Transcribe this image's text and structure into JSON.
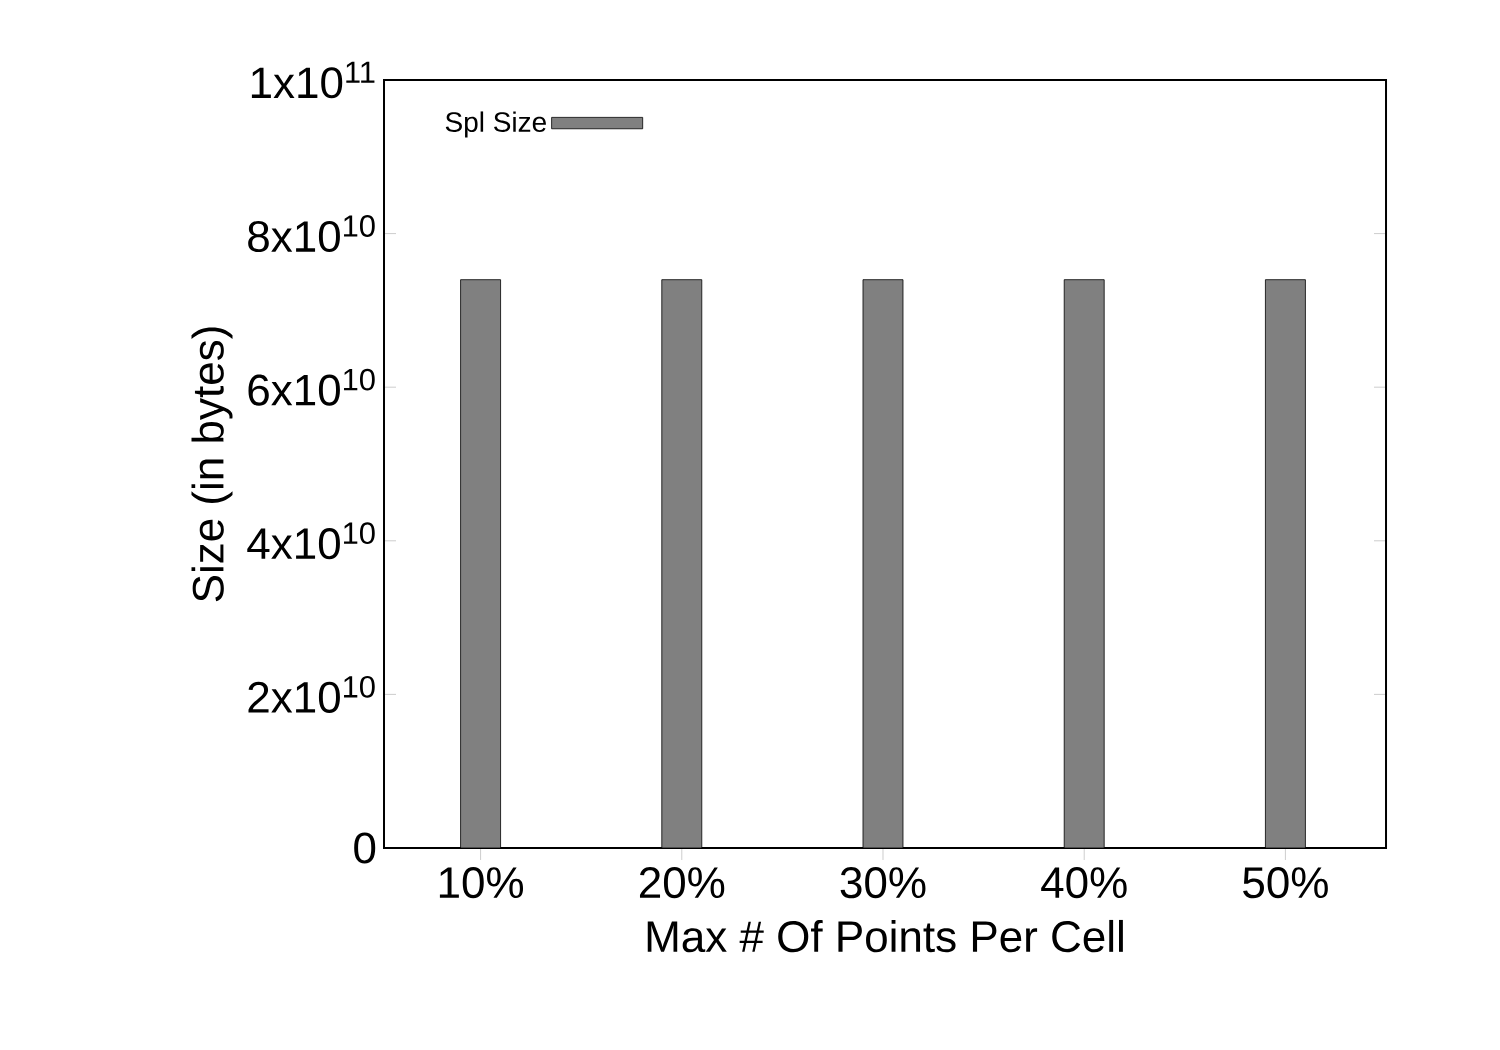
{
  "chart_data": {
    "type": "bar",
    "xlabel": "Max # Of Points Per Cell",
    "ylabel": "Size (in bytes)",
    "categories": [
      "10%",
      "20%",
      "30%",
      "40%",
      "50%"
    ],
    "series": [
      {
        "name": "Spl Size",
        "color": "#808080",
        "values": [
          74000000000.0,
          74000000000.0,
          74000000000.0,
          74000000000.0,
          74000000000.0
        ]
      }
    ],
    "ylim": [
      0,
      100000000000.0
    ],
    "yticks": [
      0,
      {
        "value": 20000000000.0,
        "label": "2x10$^{10}$"
      },
      {
        "value": 40000000000.0,
        "label": "4x10$^{10}$"
      },
      {
        "value": 60000000000.0,
        "label": "6x10$^{10}$"
      },
      {
        "value": 80000000000.0,
        "label": "8x10$^{10}$"
      },
      {
        "value": 100000000000.0,
        "label": "1x10$^{11}$"
      }
    ],
    "legend": "top left"
  }
}
